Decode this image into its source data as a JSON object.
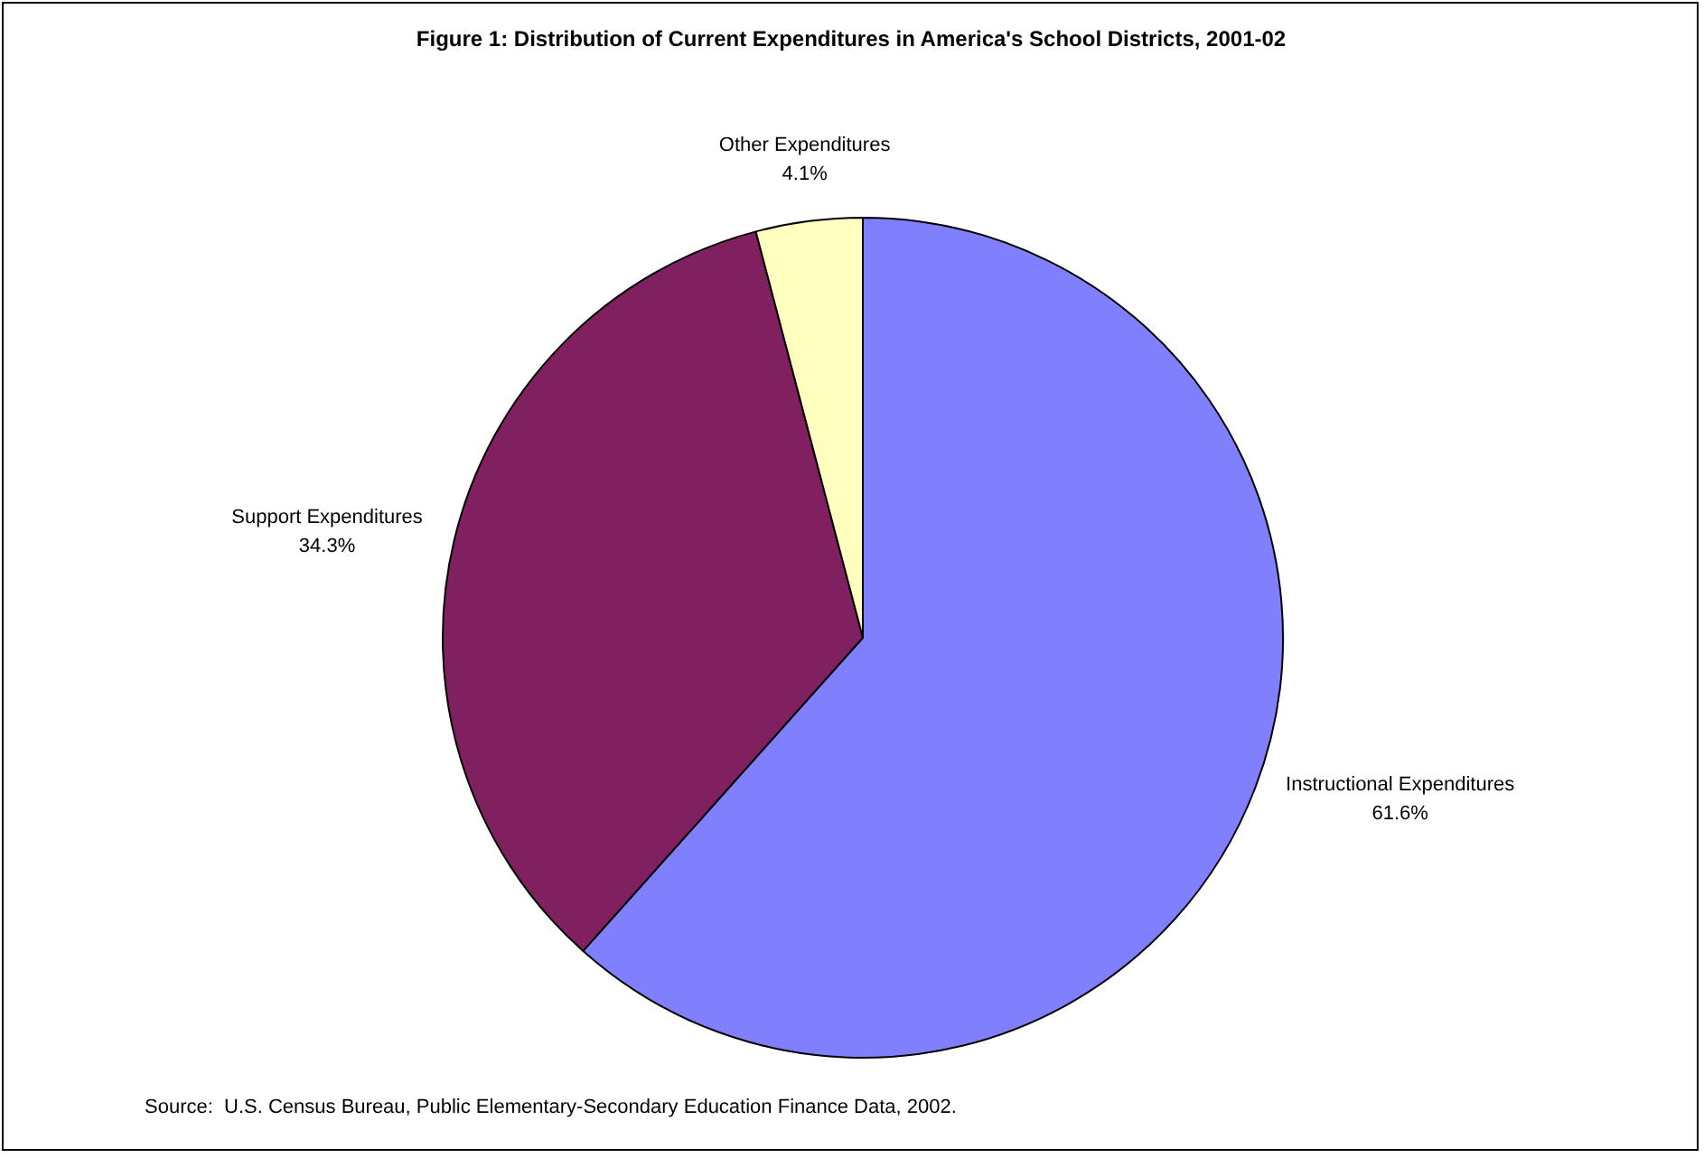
{
  "chart_data": {
    "type": "pie",
    "title": "Figure 1: Distribution of Current Expenditures in America's School Districts, 2001-02",
    "categories": [
      "Instructional Expenditures",
      "Support Expenditures",
      "Other Expenditures"
    ],
    "values": [
      61.6,
      34.3,
      4.1
    ],
    "colors": [
      "#8080ff",
      "#802060",
      "#ffffc0"
    ],
    "value_labels": [
      "61.6%",
      "34.3%",
      "4.1%"
    ],
    "legend": false,
    "annotations": [
      "Source:  U.S. Census Bureau, Public Elementary-Secondary Education Finance Data, 2002."
    ]
  }
}
